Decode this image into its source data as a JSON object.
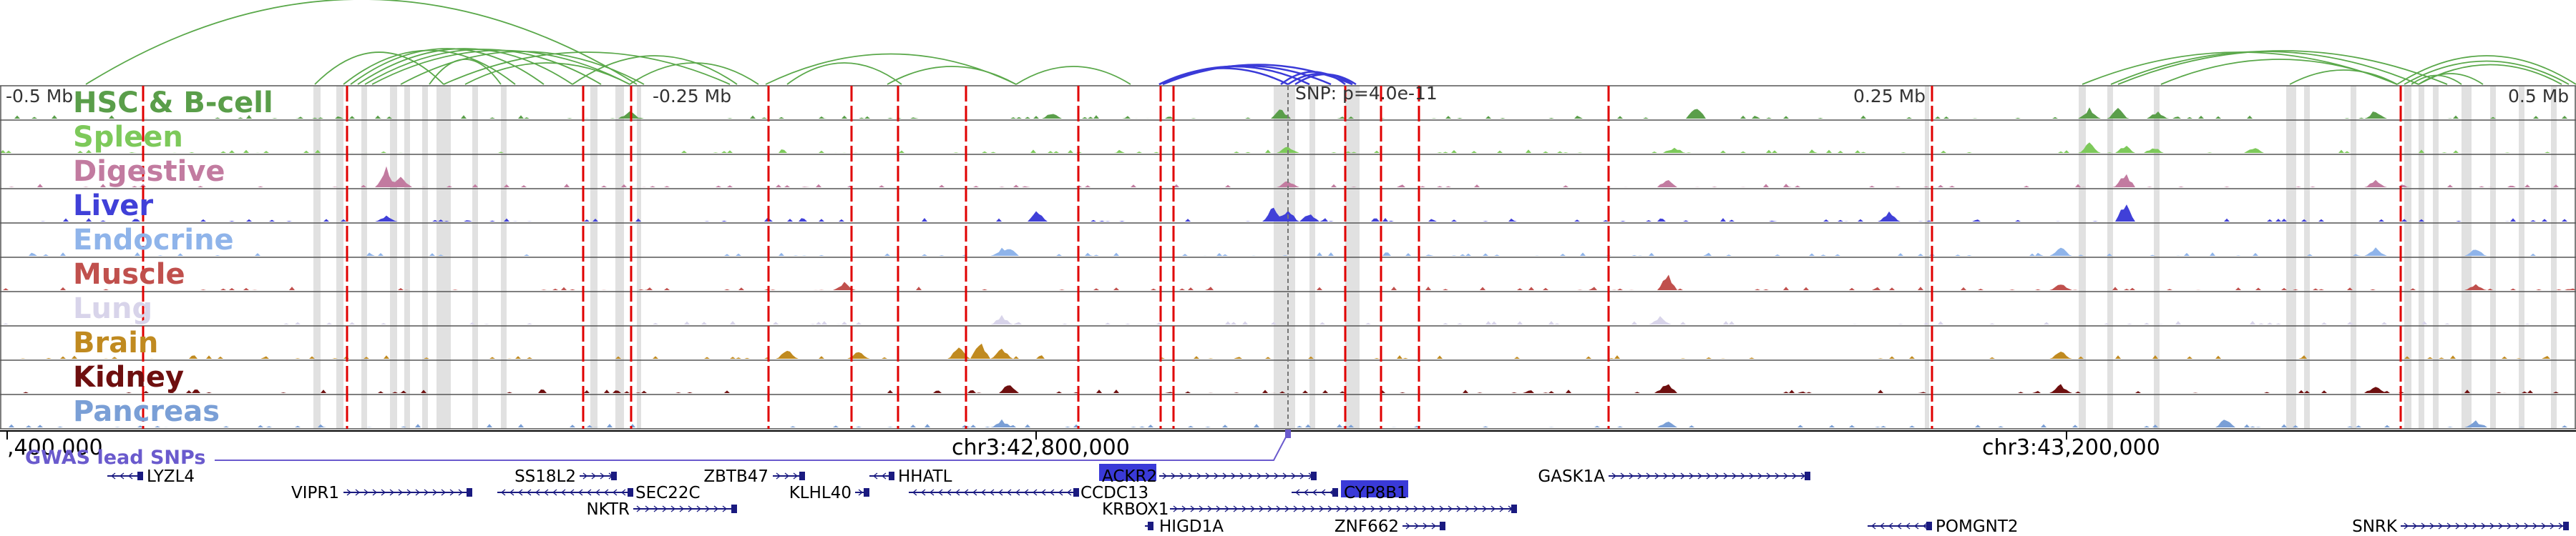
{
  "header": {
    "pos_left": "-0.5 Mb",
    "pos_mid_left": "-0.25 Mb",
    "snp_label": "SNP: p=4.0e-11",
    "pos_mid_right": "0.25 Mb",
    "pos_right": "0.5 Mb"
  },
  "axis": {
    "coord_left": ",400,000",
    "coord_mid": "chr3:42,800,000",
    "coord_right": "chr3:43,200,000",
    "snp_track_label": "GWAS lead SNPs"
  },
  "tracks": [
    {
      "name": "HSC & B-cell",
      "color": "#5a9e4a"
    },
    {
      "name": "Spleen",
      "color": "#7dc95a"
    },
    {
      "name": "Digestive",
      "color": "#c27ba0"
    },
    {
      "name": "Liver",
      "color": "#4040d8"
    },
    {
      "name": "Endocrine",
      "color": "#8fb4ea"
    },
    {
      "name": "Muscle",
      "color": "#c0504d"
    },
    {
      "name": "Lung",
      "color": "#d8d4ea"
    },
    {
      "name": "Brain",
      "color": "#c08a20"
    },
    {
      "name": "Kidney",
      "color": "#6e0f0f"
    },
    {
      "name": "Pancreas",
      "color": "#7a9fd6"
    }
  ],
  "genes": [
    {
      "name": "LYZL4"
    },
    {
      "name": "VIPR1"
    },
    {
      "name": "SS18L2"
    },
    {
      "name": "SEC22C"
    },
    {
      "name": "NKTR"
    },
    {
      "name": "ZBTB47"
    },
    {
      "name": "KLHL40"
    },
    {
      "name": "HHATL"
    },
    {
      "name": "ACKR2",
      "highlight": true
    },
    {
      "name": "CCDC13"
    },
    {
      "name": "CYP8B1",
      "highlight": true
    },
    {
      "name": "KRBOX1"
    },
    {
      "name": "HIGD1A"
    },
    {
      "name": "ZNF662"
    },
    {
      "name": "GASK1A"
    },
    {
      "name": "POMGNT2"
    },
    {
      "name": "SNRK"
    }
  ],
  "colors": {
    "loop_green": "#5aa84a",
    "loop_blue": "#3a3ad8",
    "snp_line": "#e00000",
    "highlight_gene": "#3a3ad8",
    "gene_line": "#1a1a80",
    "snp_marker": "#6a5acd"
  }
}
